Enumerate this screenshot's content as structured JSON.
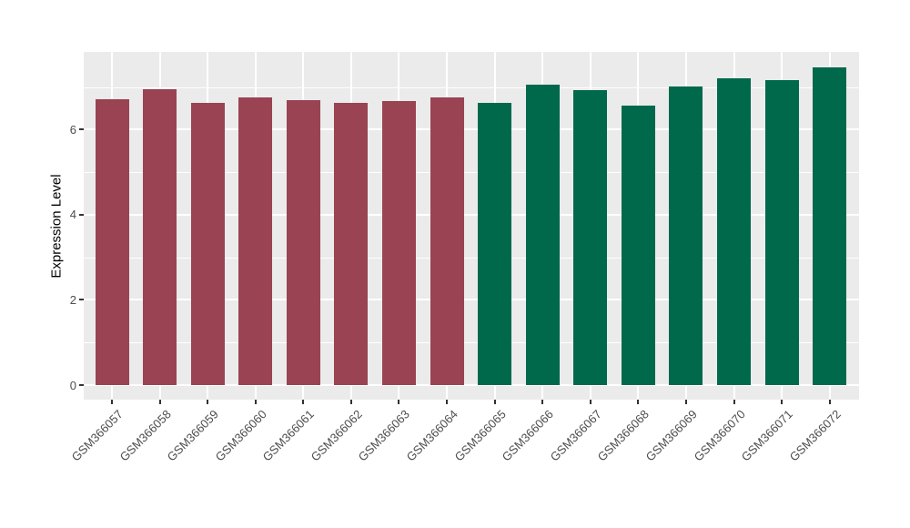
{
  "style": {
    "figure_bg": "#FFFFFF",
    "panel_bg": "#EBEBEB",
    "grid_color": "#FFFFFF",
    "tick_mark_color": "#333333",
    "tick_text_color": "#4D4D4D",
    "axis_title_color": "#000000"
  },
  "chart_data": {
    "type": "bar",
    "title": "",
    "xlabel": "",
    "ylabel": "Expression Level",
    "categories": [
      "GSM366057",
      "GSM366058",
      "GSM366059",
      "GSM366060",
      "GSM366061",
      "GSM366062",
      "GSM366063",
      "GSM366064",
      "GSM366065",
      "GSM366066",
      "GSM366067",
      "GSM366068",
      "GSM366069",
      "GSM366070",
      "GSM366071",
      "GSM366072"
    ],
    "series": [
      {
        "name": "samples-057-064",
        "color": "#9A4353",
        "categories": [
          "GSM366057",
          "GSM366058",
          "GSM366059",
          "GSM366060",
          "GSM366061",
          "GSM366062",
          "GSM366063",
          "GSM366064"
        ],
        "values": [
          6.72,
          6.95,
          6.62,
          6.76,
          6.7,
          6.63,
          6.67,
          6.75
        ]
      },
      {
        "name": "samples-065-072",
        "color": "#01694B",
        "categories": [
          "GSM366065",
          "GSM366066",
          "GSM366067",
          "GSM366068",
          "GSM366069",
          "GSM366070",
          "GSM366071",
          "GSM366072"
        ],
        "values": [
          6.62,
          7.05,
          6.93,
          6.56,
          7.01,
          7.2,
          7.17,
          7.47
        ]
      }
    ],
    "ylim": [
      -0.34,
      7.82
    ],
    "yticks": {
      "values": [
        0,
        2,
        4,
        6
      ],
      "labels": [
        "0",
        "2",
        "4",
        "6"
      ]
    },
    "yminor": [
      1,
      3,
      5,
      7
    ],
    "grid": "on",
    "legend_position": "none",
    "x_label_angle": 45,
    "bar_width_ratio": 0.7
  }
}
